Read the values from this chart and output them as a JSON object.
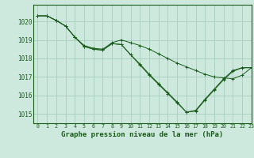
{
  "title": "Graphe pression niveau de la mer (hPa)",
  "background_color": "#cde8dc",
  "grid_color": "#a0c8b8",
  "line_color": "#1a5c1a",
  "xlim": [
    -0.5,
    23
  ],
  "ylim": [
    1014.5,
    1020.9
  ],
  "yticks": [
    1015,
    1016,
    1017,
    1018,
    1019,
    1020
  ],
  "xticks": [
    0,
    1,
    2,
    3,
    4,
    5,
    6,
    7,
    8,
    9,
    10,
    11,
    12,
    13,
    14,
    15,
    16,
    17,
    18,
    19,
    20,
    21,
    22,
    23
  ],
  "series": [
    [
      1020.3,
      1020.3,
      1020.05,
      1019.75,
      1019.15,
      1018.7,
      1018.55,
      1018.5,
      1018.85,
      1019.0,
      1018.85,
      1018.7,
      1018.5,
      1018.25,
      1018.0,
      1017.75,
      1017.55,
      1017.35,
      1017.15,
      1017.0,
      1016.95,
      1016.9,
      1017.1,
      1017.5
    ],
    [
      1020.3,
      1020.3,
      1020.05,
      1019.75,
      1019.15,
      1018.65,
      1018.5,
      1018.45,
      1018.8,
      1018.75,
      1018.2,
      1017.7,
      1017.15,
      1016.65,
      1016.15,
      1015.65,
      1015.1,
      1015.2,
      1015.8,
      1016.35,
      1016.9,
      1017.35,
      1017.5,
      1017.5
    ],
    [
      1020.3,
      1020.3,
      1020.05,
      1019.75,
      1019.15,
      1018.65,
      1018.5,
      1018.45,
      1018.8,
      1018.75,
      1018.2,
      1017.65,
      1017.1,
      1016.6,
      1016.1,
      1015.6,
      1015.1,
      1015.15,
      1015.75,
      1016.3,
      1016.85,
      1017.3,
      1017.5,
      1017.5
    ]
  ]
}
